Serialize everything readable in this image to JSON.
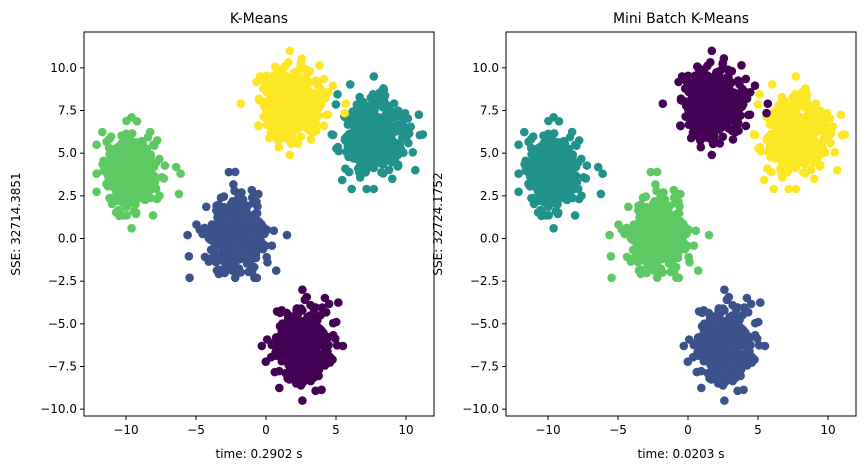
{
  "figure": {
    "background": "#ffffff"
  },
  "palette": {
    "purple": "#440154",
    "blue": "#3b528b",
    "teal": "#21918c",
    "green": "#5ec962",
    "yellow": "#fde725"
  },
  "chart_data": [
    {
      "type": "scatter",
      "title": "K-Means",
      "xlabel": "time: 0.2902 s",
      "ylabel": "SSE: 32714.3851",
      "xlim": [
        -13.0,
        12.0
      ],
      "ylim": [
        -10.4,
        12.1
      ],
      "xticks": [
        -10,
        -5,
        0,
        5,
        10
      ],
      "yticks": [
        -10.0,
        -7.5,
        -5.0,
        -2.5,
        0.0,
        2.5,
        5.0,
        7.5,
        10.0
      ],
      "grid": false,
      "clusters": [
        {
          "center": [
            2.6,
            -6.3
          ],
          "spread": [
            0.95,
            1.05
          ],
          "x_range": [
            -0.3,
            5.5
          ],
          "y_range": [
            -9.5,
            -3.0
          ],
          "color": "#440154"
        },
        {
          "center": [
            -2.2,
            0.2
          ],
          "spread": [
            1.0,
            1.0
          ],
          "x_range": [
            -5.6,
            1.5
          ],
          "y_range": [
            -2.3,
            3.9
          ],
          "color": "#3b528b"
        },
        {
          "center": [
            7.7,
            6.1
          ],
          "spread": [
            1.05,
            1.05
          ],
          "x_range": [
            4.7,
            11.2
          ],
          "y_range": [
            2.9,
            9.5
          ],
          "color": "#21918c"
        },
        {
          "center": [
            -9.6,
            3.8
          ],
          "spread": [
            0.95,
            1.05
          ],
          "x_range": [
            -12.1,
            -6.1
          ],
          "y_range": [
            0.6,
            7.1
          ],
          "color": "#5ec962"
        },
        {
          "center": [
            1.7,
            7.9
          ],
          "spread": [
            1.0,
            1.05
          ],
          "x_range": [
            -1.8,
            5.7
          ],
          "y_range": [
            4.9,
            11.0
          ],
          "color": "#fde725"
        }
      ]
    },
    {
      "type": "scatter",
      "title": "Mini Batch K-Means",
      "xlabel": "time: 0.0203 s",
      "ylabel": "SSE: 32724.1752",
      "xlim": [
        -13.0,
        12.0
      ],
      "ylim": [
        -10.4,
        12.1
      ],
      "xticks": [
        -10,
        -5,
        0,
        5,
        10
      ],
      "yticks": [
        -10.0,
        -7.5,
        -5.0,
        -2.5,
        0.0,
        2.5,
        5.0,
        7.5,
        10.0
      ],
      "grid": false,
      "clusters": [
        {
          "center": [
            2.6,
            -6.3
          ],
          "spread": [
            0.95,
            1.05
          ],
          "x_range": [
            -0.3,
            5.5
          ],
          "y_range": [
            -9.5,
            -3.0
          ],
          "color": "#3b528b"
        },
        {
          "center": [
            -2.2,
            0.2
          ],
          "spread": [
            1.0,
            1.0
          ],
          "x_range": [
            -5.6,
            1.5
          ],
          "y_range": [
            -2.3,
            3.9
          ],
          "color": "#5ec962"
        },
        {
          "center": [
            7.7,
            6.1
          ],
          "spread": [
            1.05,
            1.05
          ],
          "x_range": [
            4.7,
            11.2
          ],
          "y_range": [
            2.9,
            9.5
          ],
          "color": "#fde725"
        },
        {
          "center": [
            -9.6,
            3.8
          ],
          "spread": [
            0.95,
            1.05
          ],
          "x_range": [
            -12.1,
            -6.1
          ],
          "y_range": [
            0.6,
            7.1
          ],
          "color": "#21918c"
        },
        {
          "center": [
            1.7,
            7.9
          ],
          "spread": [
            1.0,
            1.05
          ],
          "x_range": [
            -1.8,
            5.7
          ],
          "y_range": [
            4.9,
            11.0
          ],
          "color": "#440154"
        }
      ]
    }
  ]
}
